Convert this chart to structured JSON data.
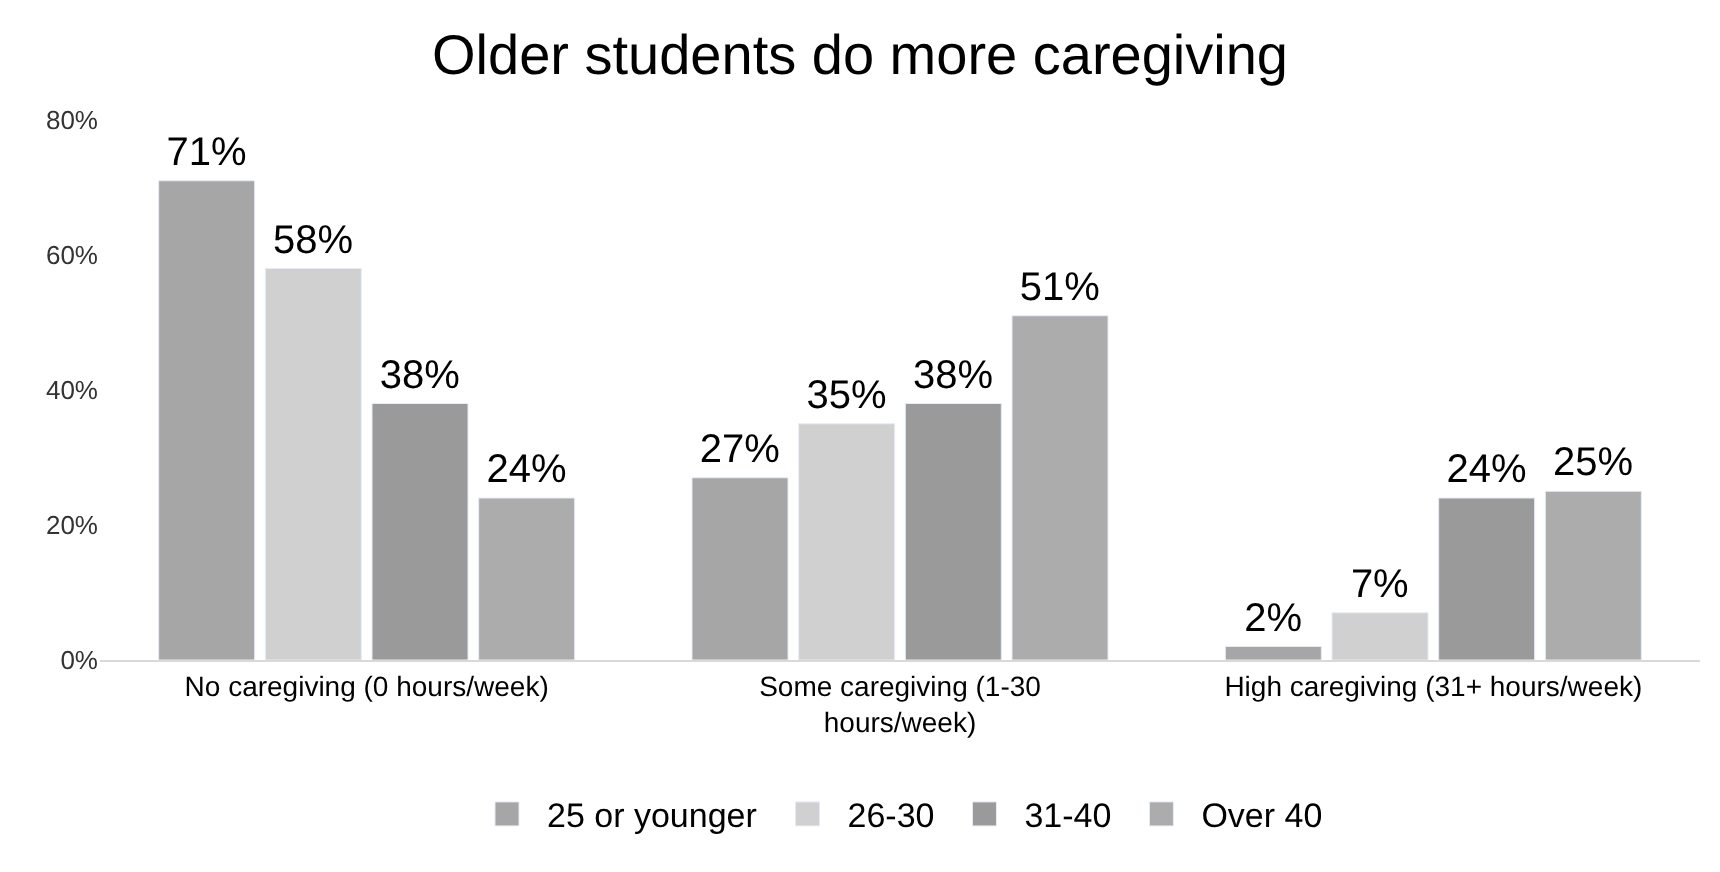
{
  "chart_data": {
    "type": "bar",
    "title": "Older students do more caregiving",
    "categories": [
      "No caregiving (0 hours/week)",
      "Some caregiving (1-30 hours/week)",
      "High caregiving (31+ hours/week)"
    ],
    "series": [
      {
        "name": "25 or younger",
        "color": "#a6a6a6",
        "values": [
          71,
          27,
          2
        ],
        "value_labels": [
          "71%",
          "27%",
          "2%"
        ]
      },
      {
        "name": "26-30",
        "color": "#d0d0d0",
        "values": [
          58,
          35,
          7
        ],
        "value_labels": [
          "58%",
          "35%",
          "7%"
        ]
      },
      {
        "name": "31-40",
        "color": "#9a9a9a",
        "values": [
          38,
          38,
          24
        ],
        "value_labels": [
          "38%",
          "38%",
          "24%"
        ]
      },
      {
        "name": "Over 40",
        "color": "#acacac",
        "values": [
          24,
          51,
          25
        ],
        "value_labels": [
          "24%",
          "51%",
          "25%"
        ]
      }
    ],
    "ylim": [
      0,
      80
    ],
    "yticks": [
      {
        "value": 0,
        "label": "0%"
      },
      {
        "value": 20,
        "label": "20%"
      },
      {
        "value": 40,
        "label": "40%"
      },
      {
        "value": 60,
        "label": "60%"
      },
      {
        "value": 80,
        "label": "80%"
      }
    ],
    "grid": false,
    "legend": "bottom"
  }
}
